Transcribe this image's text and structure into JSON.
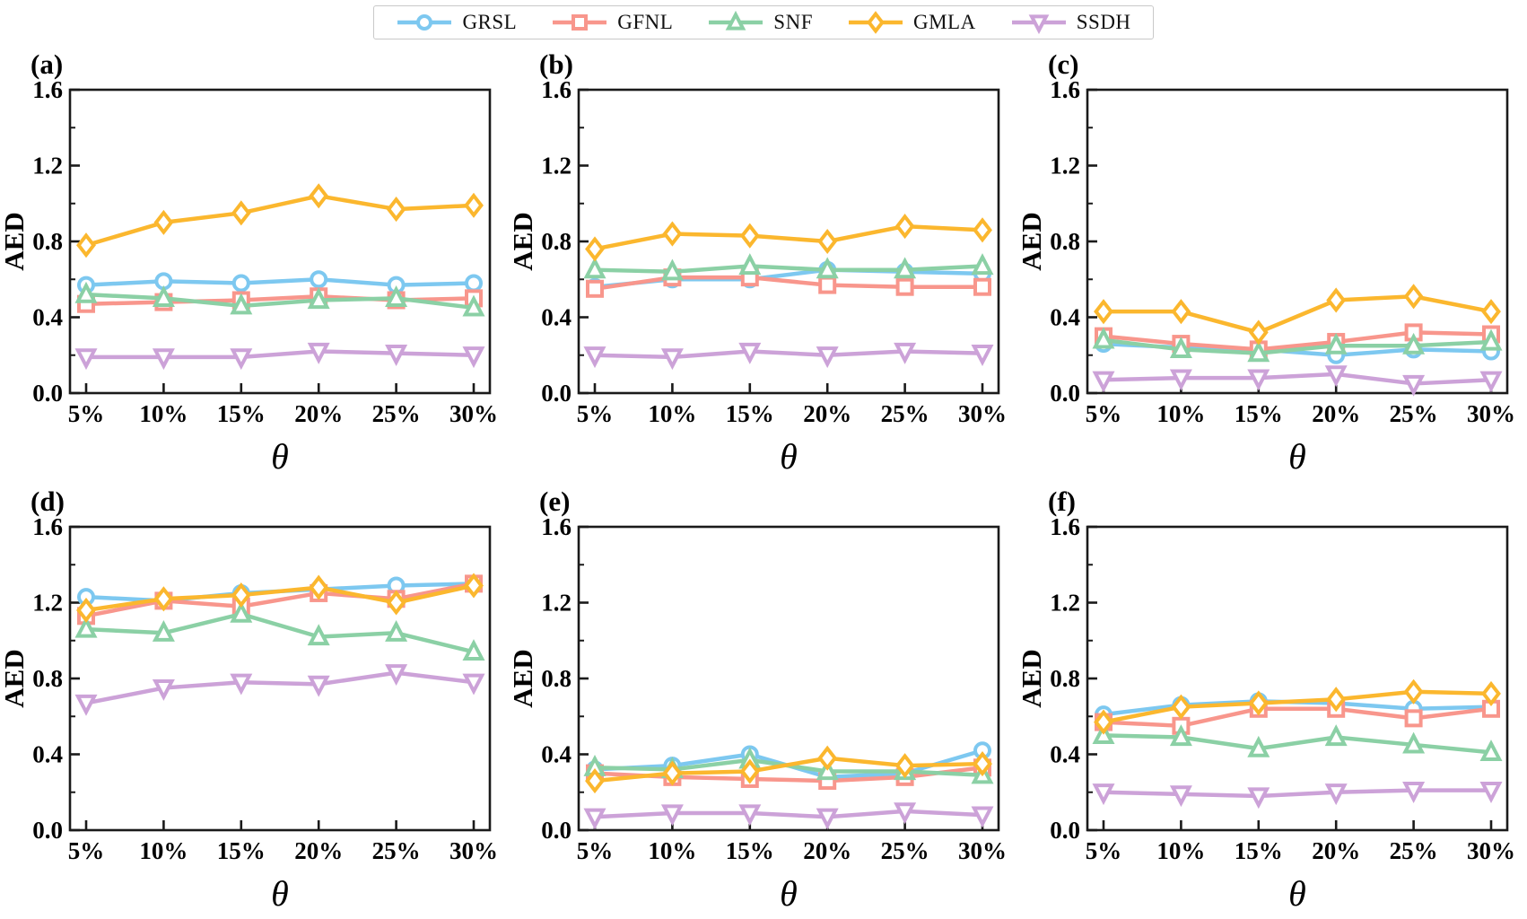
{
  "legend": {
    "items": [
      {
        "label": "GRSL",
        "color": "#7DC8F0",
        "marker": "circle"
      },
      {
        "label": "GFNL",
        "color": "#F8968C",
        "marker": "square"
      },
      {
        "label": "SNF",
        "color": "#8BD0A5",
        "marker": "triangle-up"
      },
      {
        "label": "GMLA",
        "color": "#FBB72E",
        "marker": "diamond"
      },
      {
        "label": "SSDH",
        "color": "#CCA2D8",
        "marker": "triangle-down"
      }
    ]
  },
  "chart_data": [
    {
      "id": "a",
      "type": "line",
      "title": "(a)",
      "xlabel": "θ",
      "ylabel": "AED",
      "ylim": [
        0,
        1.6
      ],
      "yticks": [
        "0.0",
        "0.4",
        "0.8",
        "1.2",
        "1.6"
      ],
      "categories": [
        "5%",
        "10%",
        "15%",
        "20%",
        "25%",
        "30%"
      ],
      "series": [
        {
          "name": "GRSL",
          "values": [
            0.57,
            0.59,
            0.58,
            0.6,
            0.57,
            0.58
          ]
        },
        {
          "name": "GFNL",
          "values": [
            0.47,
            0.48,
            0.49,
            0.51,
            0.49,
            0.5
          ]
        },
        {
          "name": "SNF",
          "values": [
            0.52,
            0.5,
            0.46,
            0.49,
            0.5,
            0.45
          ]
        },
        {
          "name": "GMLA",
          "values": [
            0.78,
            0.9,
            0.95,
            1.04,
            0.97,
            0.99
          ]
        },
        {
          "name": "SSDH",
          "values": [
            0.19,
            0.19,
            0.19,
            0.22,
            0.21,
            0.2
          ]
        }
      ]
    },
    {
      "id": "b",
      "type": "line",
      "title": "(b)",
      "xlabel": "θ",
      "ylabel": "AED",
      "ylim": [
        0,
        1.6
      ],
      "yticks": [
        "0.0",
        "0.4",
        "0.8",
        "1.2",
        "1.6"
      ],
      "categories": [
        "5%",
        "10%",
        "15%",
        "20%",
        "25%",
        "30%"
      ],
      "series": [
        {
          "name": "GRSL",
          "values": [
            0.56,
            0.6,
            0.6,
            0.65,
            0.64,
            0.63
          ]
        },
        {
          "name": "GFNL",
          "values": [
            0.55,
            0.61,
            0.61,
            0.57,
            0.56,
            0.56
          ]
        },
        {
          "name": "SNF",
          "values": [
            0.65,
            0.64,
            0.67,
            0.65,
            0.65,
            0.67
          ]
        },
        {
          "name": "GMLA",
          "values": [
            0.76,
            0.84,
            0.83,
            0.8,
            0.88,
            0.86
          ]
        },
        {
          "name": "SSDH",
          "values": [
            0.2,
            0.19,
            0.22,
            0.2,
            0.22,
            0.21
          ]
        }
      ]
    },
    {
      "id": "c",
      "type": "line",
      "title": "(c)",
      "xlabel": "θ",
      "ylabel": "AED",
      "ylim": [
        0,
        1.6
      ],
      "yticks": [
        "0.0",
        "0.4",
        "0.8",
        "1.2",
        "1.6"
      ],
      "categories": [
        "5%",
        "10%",
        "15%",
        "20%",
        "25%",
        "30%"
      ],
      "series": [
        {
          "name": "GRSL",
          "values": [
            0.26,
            0.24,
            0.23,
            0.2,
            0.23,
            0.22
          ]
        },
        {
          "name": "GFNL",
          "values": [
            0.3,
            0.26,
            0.23,
            0.27,
            0.32,
            0.31
          ]
        },
        {
          "name": "SNF",
          "values": [
            0.28,
            0.23,
            0.21,
            0.25,
            0.25,
            0.27
          ]
        },
        {
          "name": "GMLA",
          "values": [
            0.43,
            0.43,
            0.32,
            0.49,
            0.51,
            0.43
          ]
        },
        {
          "name": "SSDH",
          "values": [
            0.07,
            0.08,
            0.08,
            0.1,
            0.05,
            0.07
          ]
        }
      ]
    },
    {
      "id": "d",
      "type": "line",
      "title": "(d)",
      "xlabel": "θ",
      "ylabel": "AED",
      "ylim": [
        0,
        1.6
      ],
      "yticks": [
        "0.0",
        "0.4",
        "0.8",
        "1.2",
        "1.6"
      ],
      "categories": [
        "5%",
        "10%",
        "15%",
        "20%",
        "25%",
        "30%"
      ],
      "series": [
        {
          "name": "GRSL",
          "values": [
            1.23,
            1.21,
            1.25,
            1.27,
            1.29,
            1.3
          ]
        },
        {
          "name": "GFNL",
          "values": [
            1.13,
            1.21,
            1.18,
            1.25,
            1.22,
            1.3
          ]
        },
        {
          "name": "SNF",
          "values": [
            1.06,
            1.04,
            1.14,
            1.02,
            1.04,
            0.94
          ]
        },
        {
          "name": "GMLA",
          "values": [
            1.16,
            1.22,
            1.24,
            1.28,
            1.2,
            1.29
          ]
        },
        {
          "name": "SSDH",
          "values": [
            0.67,
            0.75,
            0.78,
            0.77,
            0.83,
            0.78
          ]
        }
      ]
    },
    {
      "id": "e",
      "type": "line",
      "title": "(e)",
      "xlabel": "θ",
      "ylabel": "AED",
      "ylim": [
        0,
        1.6
      ],
      "yticks": [
        "0.0",
        "0.4",
        "0.8",
        "1.2",
        "1.6"
      ],
      "categories": [
        "5%",
        "10%",
        "15%",
        "20%",
        "25%",
        "30%"
      ],
      "series": [
        {
          "name": "GRSL",
          "values": [
            0.32,
            0.34,
            0.4,
            0.28,
            0.3,
            0.42
          ]
        },
        {
          "name": "GFNL",
          "values": [
            0.3,
            0.28,
            0.27,
            0.26,
            0.28,
            0.33
          ]
        },
        {
          "name": "SNF",
          "values": [
            0.33,
            0.32,
            0.37,
            0.31,
            0.31,
            0.29
          ]
        },
        {
          "name": "GMLA",
          "values": [
            0.26,
            0.3,
            0.31,
            0.38,
            0.34,
            0.35
          ]
        },
        {
          "name": "SSDH",
          "values": [
            0.07,
            0.09,
            0.09,
            0.07,
            0.1,
            0.08
          ]
        }
      ]
    },
    {
      "id": "f",
      "type": "line",
      "title": "(f)",
      "xlabel": "θ",
      "ylabel": "AED",
      "ylim": [
        0,
        1.6
      ],
      "yticks": [
        "0.0",
        "0.4",
        "0.8",
        "1.2",
        "1.6"
      ],
      "categories": [
        "5%",
        "10%",
        "15%",
        "20%",
        "25%",
        "30%"
      ],
      "series": [
        {
          "name": "GRSL",
          "values": [
            0.61,
            0.66,
            0.68,
            0.67,
            0.64,
            0.65
          ]
        },
        {
          "name": "GFNL",
          "values": [
            0.57,
            0.55,
            0.64,
            0.64,
            0.59,
            0.64
          ]
        },
        {
          "name": "SNF",
          "values": [
            0.5,
            0.49,
            0.43,
            0.49,
            0.45,
            0.41
          ]
        },
        {
          "name": "GMLA",
          "values": [
            0.57,
            0.65,
            0.67,
            0.69,
            0.73,
            0.72
          ]
        },
        {
          "name": "SSDH",
          "values": [
            0.2,
            0.19,
            0.18,
            0.2,
            0.21,
            0.21
          ]
        }
      ]
    }
  ]
}
